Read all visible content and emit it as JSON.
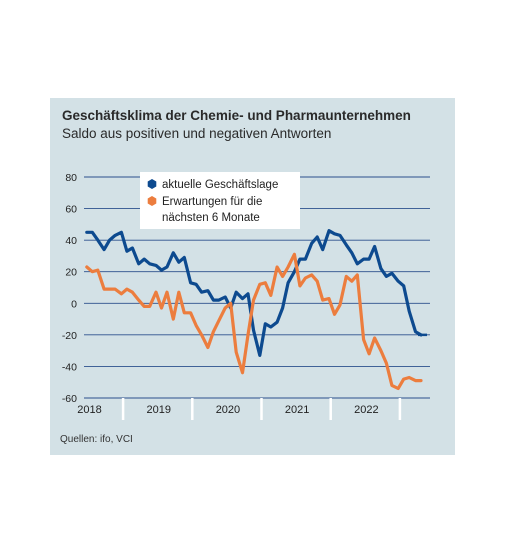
{
  "chart_data": {
    "type": "line",
    "title": "Geschäftsklima der Chemie- und Pharmaunternehmen",
    "subtitle": "Saldo aus positiven und negativen Antworten",
    "ylim": [
      -60,
      80
    ],
    "yticks": [
      "80",
      "60",
      "40",
      "20",
      "0",
      "-20",
      "-40",
      "-60"
    ],
    "xlim": [
      2017.5,
      2022.5
    ],
    "year_labels": [
      "2018",
      "2019",
      "2020",
      "2021",
      "2022"
    ],
    "grid": "horizontal",
    "legend_position": "top-left",
    "series": [
      {
        "name": "aktuelle Geschäftslage",
        "color": "#0d4a8f",
        "x": [
          2017.54,
          2017.62,
          2017.7,
          2017.79,
          2017.87,
          2017.95,
          2018.04,
          2018.12,
          2018.2,
          2018.29,
          2018.37,
          2018.45,
          2018.54,
          2018.62,
          2018.7,
          2018.79,
          2018.87,
          2018.95,
          2019.04,
          2019.12,
          2019.2,
          2019.29,
          2019.37,
          2019.45,
          2019.54,
          2019.62,
          2019.7,
          2019.79,
          2019.87,
          2019.95,
          2020.04,
          2020.12,
          2020.2,
          2020.29,
          2020.37,
          2020.45,
          2020.54,
          2020.62,
          2020.7,
          2020.79,
          2020.87,
          2020.95,
          2021.04,
          2021.12,
          2021.2,
          2021.29,
          2021.37,
          2021.45,
          2021.54,
          2021.62,
          2021.7,
          2021.79,
          2021.87,
          2021.95,
          2022.04,
          2022.12,
          2022.2,
          2022.29,
          2022.37
        ],
        "y": [
          45,
          45,
          40,
          34,
          40,
          43,
          45,
          33,
          35,
          25,
          28,
          25,
          24,
          21,
          23,
          32,
          26,
          29,
          13,
          12,
          7,
          8,
          2,
          2,
          4,
          -3,
          7,
          3,
          6,
          -17,
          -33,
          -13,
          -15,
          -12,
          -3,
          13,
          20,
          28,
          28,
          38,
          42,
          34,
          46,
          44,
          43,
          37,
          32,
          25,
          28,
          28,
          36,
          22,
          17,
          19,
          14,
          11,
          -5,
          -18,
          -20
        ],
        "last_point_marker": true
      },
      {
        "name": "Erwartungen für die nächsten 6 Monate",
        "color": "#ec7d3e",
        "x": [
          2017.54,
          2017.62,
          2017.7,
          2017.79,
          2017.87,
          2017.95,
          2018.04,
          2018.12,
          2018.2,
          2018.29,
          2018.37,
          2018.45,
          2018.54,
          2018.62,
          2018.7,
          2018.79,
          2018.87,
          2018.95,
          2019.04,
          2019.12,
          2019.2,
          2019.29,
          2019.37,
          2019.45,
          2019.54,
          2019.62,
          2019.7,
          2019.79,
          2019.87,
          2019.95,
          2020.04,
          2020.12,
          2020.2,
          2020.29,
          2020.37,
          2020.45,
          2020.54,
          2020.62,
          2020.7,
          2020.79,
          2020.87,
          2020.95,
          2021.04,
          2021.12,
          2021.2,
          2021.29,
          2021.37,
          2021.45,
          2021.54,
          2021.62,
          2021.7,
          2021.79,
          2021.87,
          2021.95,
          2022.04,
          2022.12,
          2022.2,
          2022.29,
          2022.37
        ],
        "y": [
          23,
          20,
          21,
          9,
          9,
          9,
          6,
          9,
          7,
          2,
          -2,
          -2,
          7,
          -3,
          7,
          -10,
          7,
          -6,
          -6,
          -14,
          -20,
          -28,
          -18,
          -11,
          -3,
          0,
          -31,
          -44,
          -20,
          2,
          12,
          13,
          5,
          23,
          17,
          23,
          31,
          11,
          16,
          18,
          14,
          2,
          3,
          -7,
          -1,
          17,
          14,
          18,
          -23,
          -32,
          -22,
          -30,
          -38,
          -52,
          -54,
          -48,
          -47,
          -49,
          -49
        ]
      }
    ],
    "source": "Quellen: ifo, VCI"
  }
}
